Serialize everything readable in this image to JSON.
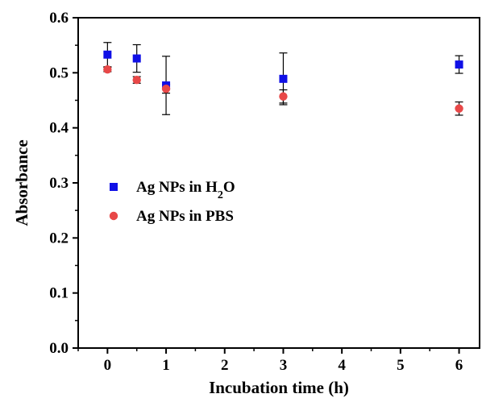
{
  "chart_data": {
    "type": "scatter",
    "title": "",
    "xlabel": "Incubation time (h)",
    "ylabel": "Absorbance",
    "xlim": [
      -0.5,
      6.35
    ],
    "ylim": [
      0.0,
      0.6
    ],
    "xticks": [
      0,
      1,
      2,
      3,
      4,
      5,
      6
    ],
    "xtick_labels": [
      "0",
      "1",
      "2",
      "3",
      "4",
      "5",
      "6"
    ],
    "yticks": [
      0.0,
      0.1,
      0.2,
      0.3,
      0.4,
      0.5,
      0.6
    ],
    "ytick_labels": [
      "0.0",
      "0.1",
      "0.2",
      "0.3",
      "0.4",
      "0.5",
      "0.6"
    ],
    "grid": false,
    "legend_position": "center-left",
    "series": [
      {
        "name": "Ag NPs in H2O",
        "legend": {
          "prefix": "Ag NPs in H",
          "subscript": "2",
          "suffix": "O"
        },
        "marker": "square",
        "color": "#1010e6",
        "x": [
          0,
          0.5,
          1,
          3,
          6
        ],
        "y": [
          0.533,
          0.526,
          0.477,
          0.489,
          0.515
        ],
        "err": [
          0.022,
          0.025,
          0.053,
          0.047,
          0.016
        ]
      },
      {
        "name": "Ag NPs in PBS",
        "legend": {
          "prefix": "Ag NPs in PBS",
          "subscript": "",
          "suffix": ""
        },
        "marker": "circle",
        "color": "#e84848",
        "x": [
          0,
          0.5,
          1,
          3,
          6
        ],
        "y": [
          0.506,
          0.487,
          0.471,
          0.457,
          0.435
        ],
        "err": [
          0.004,
          0.006,
          0.008,
          0.012,
          0.012
        ]
      }
    ]
  }
}
